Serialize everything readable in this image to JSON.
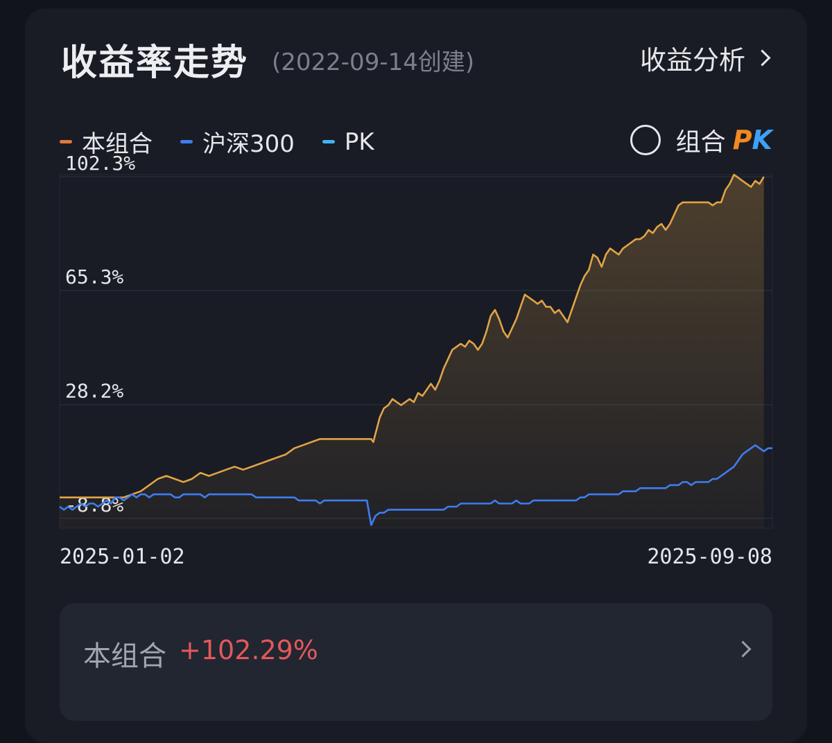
{
  "header": {
    "title": "收益率走势",
    "subtitle": "(2022-09-14创建)",
    "analysis_label": "收益分析"
  },
  "legend": [
    {
      "label": "本组合",
      "color": "#e07a3a"
    },
    {
      "label": "沪深300",
      "color": "#3f7df0"
    },
    {
      "label": "PK",
      "color": "#41b4f5"
    }
  ],
  "pk_toggle": {
    "label": "组合",
    "logo_left": "P",
    "logo_right": "K",
    "checked": false
  },
  "summary": {
    "label": "本组合",
    "value": "+102.29%"
  },
  "chart_data": {
    "type": "line",
    "x_range": [
      "2025-01-02",
      "2025-09-08"
    ],
    "x_tick_labels": [
      "2025-01-02",
      "2025-09-08"
    ],
    "y_tick_labels": [
      "102.3%",
      "65.3%",
      "28.2%",
      "-8.8%"
    ],
    "y_ticks": [
      102.3,
      65.3,
      28.2,
      -8.8
    ],
    "ylim": [
      -12,
      103
    ],
    "grid": true,
    "series": [
      {
        "name": "本组合",
        "color": "#e2a445",
        "fill": true,
        "values": [
          [
            0,
            -2
          ],
          [
            6,
            -2
          ],
          [
            12,
            -2
          ],
          [
            15,
            -2
          ],
          [
            17,
            -1
          ],
          [
            19,
            0
          ],
          [
            21,
            2
          ],
          [
            23,
            4
          ],
          [
            25,
            5
          ],
          [
            27,
            4
          ],
          [
            29,
            3
          ],
          [
            31,
            4
          ],
          [
            33,
            6
          ],
          [
            35,
            5
          ],
          [
            37,
            6
          ],
          [
            39,
            7
          ],
          [
            41,
            8
          ],
          [
            43,
            7
          ],
          [
            45,
            8
          ],
          [
            47,
            9
          ],
          [
            49,
            10
          ],
          [
            51,
            11
          ],
          [
            53,
            12
          ],
          [
            55,
            14
          ],
          [
            57,
            15
          ],
          [
            59,
            16
          ],
          [
            61,
            17
          ],
          [
            63,
            17
          ],
          [
            65,
            17
          ],
          [
            67,
            17
          ],
          [
            69,
            17
          ],
          [
            71,
            17
          ],
          [
            73,
            17
          ],
          [
            73.5,
            16
          ],
          [
            75,
            24
          ],
          [
            76,
            27
          ],
          [
            77,
            28
          ],
          [
            78,
            30
          ],
          [
            79,
            29
          ],
          [
            80,
            28
          ],
          [
            81,
            29
          ],
          [
            82,
            30
          ],
          [
            83,
            29
          ],
          [
            84,
            32
          ],
          [
            85,
            31
          ],
          [
            86,
            33
          ],
          [
            87,
            35
          ],
          [
            88,
            33
          ],
          [
            89,
            36
          ],
          [
            90,
            40
          ],
          [
            91,
            43
          ],
          [
            92,
            46
          ],
          [
            93,
            47
          ],
          [
            94,
            48
          ],
          [
            95,
            47
          ],
          [
            96,
            49
          ],
          [
            97,
            48
          ],
          [
            98,
            46
          ],
          [
            99,
            48
          ],
          [
            100,
            52
          ],
          [
            101,
            57
          ],
          [
            102,
            59
          ],
          [
            103,
            56
          ],
          [
            104,
            52
          ],
          [
            105,
            50
          ],
          [
            106,
            53
          ],
          [
            107,
            56
          ],
          [
            108,
            60
          ],
          [
            109,
            64
          ],
          [
            110,
            63
          ],
          [
            111,
            62
          ],
          [
            112,
            61
          ],
          [
            113,
            62
          ],
          [
            114,
            60
          ],
          [
            115,
            60
          ],
          [
            116,
            58
          ],
          [
            117,
            59
          ],
          [
            118,
            57
          ],
          [
            119,
            55
          ],
          [
            120,
            59
          ],
          [
            121,
            63
          ],
          [
            122,
            67
          ],
          [
            123,
            70
          ],
          [
            124,
            72
          ],
          [
            125,
            77
          ],
          [
            126,
            76
          ],
          [
            127,
            73
          ],
          [
            128,
            77
          ],
          [
            129,
            79
          ],
          [
            130,
            78
          ],
          [
            131,
            77
          ],
          [
            132,
            79
          ],
          [
            133,
            80
          ],
          [
            134,
            81
          ],
          [
            135,
            82
          ],
          [
            136,
            82
          ],
          [
            137,
            83
          ],
          [
            138,
            85
          ],
          [
            139,
            84
          ],
          [
            140,
            86
          ],
          [
            141,
            87
          ],
          [
            142,
            85
          ],
          [
            143,
            87
          ],
          [
            144,
            90
          ],
          [
            145,
            93
          ],
          [
            146,
            94
          ],
          [
            147,
            94
          ],
          [
            148,
            94
          ],
          [
            149,
            94
          ],
          [
            150,
            94
          ],
          [
            151,
            94
          ],
          [
            152,
            94
          ],
          [
            153,
            93
          ],
          [
            154,
            94
          ],
          [
            155,
            94
          ],
          [
            156,
            98
          ],
          [
            157,
            100
          ],
          [
            158,
            103
          ],
          [
            159,
            102
          ],
          [
            160,
            101
          ],
          [
            161,
            100
          ],
          [
            162,
            99
          ],
          [
            163,
            101
          ],
          [
            164,
            100
          ],
          [
            165,
            102.3
          ]
        ]
      },
      {
        "name": "沪深300",
        "color": "#3f7df0",
        "fill": false,
        "values": [
          [
            0,
            -5
          ],
          [
            1,
            -6
          ],
          [
            2,
            -5
          ],
          [
            3,
            -6
          ],
          [
            4,
            -5
          ],
          [
            5,
            -4
          ],
          [
            6,
            -5
          ],
          [
            7,
            -4
          ],
          [
            8,
            -4
          ],
          [
            9,
            -5
          ],
          [
            10,
            -4
          ],
          [
            11,
            -3
          ],
          [
            12,
            -4
          ],
          [
            13,
            -2
          ],
          [
            14,
            -2
          ],
          [
            15,
            -3
          ],
          [
            16,
            -2
          ],
          [
            17,
            -1
          ],
          [
            18,
            -2
          ],
          [
            19,
            -1
          ],
          [
            20,
            -1
          ],
          [
            21,
            -2
          ],
          [
            22,
            -1
          ],
          [
            23,
            -1
          ],
          [
            24,
            -1
          ],
          [
            25,
            -1
          ],
          [
            26,
            -1
          ],
          [
            27,
            -2
          ],
          [
            28,
            -2
          ],
          [
            29,
            -1
          ],
          [
            30,
            -1
          ],
          [
            31,
            -1
          ],
          [
            32,
            -1
          ],
          [
            33,
            -1
          ],
          [
            34,
            -2
          ],
          [
            35,
            -1
          ],
          [
            36,
            -1
          ],
          [
            37,
            -1
          ],
          [
            38,
            -1
          ],
          [
            39,
            -1
          ],
          [
            40,
            -1
          ],
          [
            41,
            -1
          ],
          [
            42,
            -1
          ],
          [
            43,
            -1
          ],
          [
            44,
            -1
          ],
          [
            45,
            -1
          ],
          [
            46,
            -2
          ],
          [
            47,
            -2
          ],
          [
            48,
            -2
          ],
          [
            49,
            -2
          ],
          [
            50,
            -2
          ],
          [
            51,
            -2
          ],
          [
            52,
            -2
          ],
          [
            53,
            -2
          ],
          [
            54,
            -2
          ],
          [
            55,
            -2
          ],
          [
            56,
            -3
          ],
          [
            57,
            -3
          ],
          [
            58,
            -3
          ],
          [
            59,
            -3
          ],
          [
            60,
            -3
          ],
          [
            61,
            -4
          ],
          [
            62,
            -3
          ],
          [
            63,
            -3
          ],
          [
            64,
            -3
          ],
          [
            65,
            -3
          ],
          [
            66,
            -3
          ],
          [
            67,
            -3
          ],
          [
            68,
            -3
          ],
          [
            69,
            -3
          ],
          [
            70,
            -3
          ],
          [
            71,
            -3
          ],
          [
            72,
            -3
          ],
          [
            73,
            -11
          ],
          [
            74,
            -8
          ],
          [
            75,
            -7
          ],
          [
            76,
            -7
          ],
          [
            77,
            -6
          ],
          [
            78,
            -6
          ],
          [
            79,
            -6
          ],
          [
            80,
            -6
          ],
          [
            81,
            -6
          ],
          [
            82,
            -6
          ],
          [
            83,
            -6
          ],
          [
            84,
            -6
          ],
          [
            85,
            -6
          ],
          [
            86,
            -6
          ],
          [
            87,
            -6
          ],
          [
            88,
            -6
          ],
          [
            89,
            -6
          ],
          [
            90,
            -6
          ],
          [
            91,
            -5
          ],
          [
            92,
            -5
          ],
          [
            93,
            -5
          ],
          [
            94,
            -4
          ],
          [
            95,
            -4
          ],
          [
            96,
            -4
          ],
          [
            97,
            -4
          ],
          [
            98,
            -4
          ],
          [
            99,
            -4
          ],
          [
            100,
            -4
          ],
          [
            101,
            -4
          ],
          [
            102,
            -3
          ],
          [
            103,
            -4
          ],
          [
            104,
            -4
          ],
          [
            105,
            -4
          ],
          [
            106,
            -4
          ],
          [
            107,
            -3
          ],
          [
            108,
            -4
          ],
          [
            109,
            -4
          ],
          [
            110,
            -4
          ],
          [
            111,
            -3
          ],
          [
            112,
            -3
          ],
          [
            113,
            -3
          ],
          [
            114,
            -3
          ],
          [
            115,
            -3
          ],
          [
            116,
            -3
          ],
          [
            117,
            -3
          ],
          [
            118,
            -3
          ],
          [
            119,
            -3
          ],
          [
            120,
            -3
          ],
          [
            121,
            -3
          ],
          [
            122,
            -2
          ],
          [
            123,
            -2
          ],
          [
            124,
            -1
          ],
          [
            125,
            -1
          ],
          [
            126,
            -1
          ],
          [
            127,
            -1
          ],
          [
            128,
            -1
          ],
          [
            129,
            -1
          ],
          [
            130,
            -1
          ],
          [
            131,
            -1
          ],
          [
            132,
            0
          ],
          [
            133,
            0
          ],
          [
            134,
            0
          ],
          [
            135,
            0
          ],
          [
            136,
            1
          ],
          [
            137,
            1
          ],
          [
            138,
            1
          ],
          [
            139,
            1
          ],
          [
            140,
            1
          ],
          [
            141,
            1
          ],
          [
            142,
            1
          ],
          [
            143,
            2
          ],
          [
            144,
            2
          ],
          [
            145,
            2
          ],
          [
            146,
            3
          ],
          [
            147,
            3
          ],
          [
            148,
            2
          ],
          [
            149,
            3
          ],
          [
            150,
            3
          ],
          [
            151,
            3
          ],
          [
            152,
            3
          ],
          [
            153,
            4
          ],
          [
            154,
            4
          ],
          [
            155,
            5
          ],
          [
            156,
            6
          ],
          [
            157,
            7
          ],
          [
            158,
            8
          ],
          [
            159,
            10
          ],
          [
            160,
            12
          ],
          [
            161,
            13
          ],
          [
            162,
            14
          ],
          [
            163,
            15
          ],
          [
            164,
            14
          ],
          [
            165,
            13
          ],
          [
            166,
            14
          ],
          [
            167,
            14
          ]
        ]
      }
    ]
  }
}
